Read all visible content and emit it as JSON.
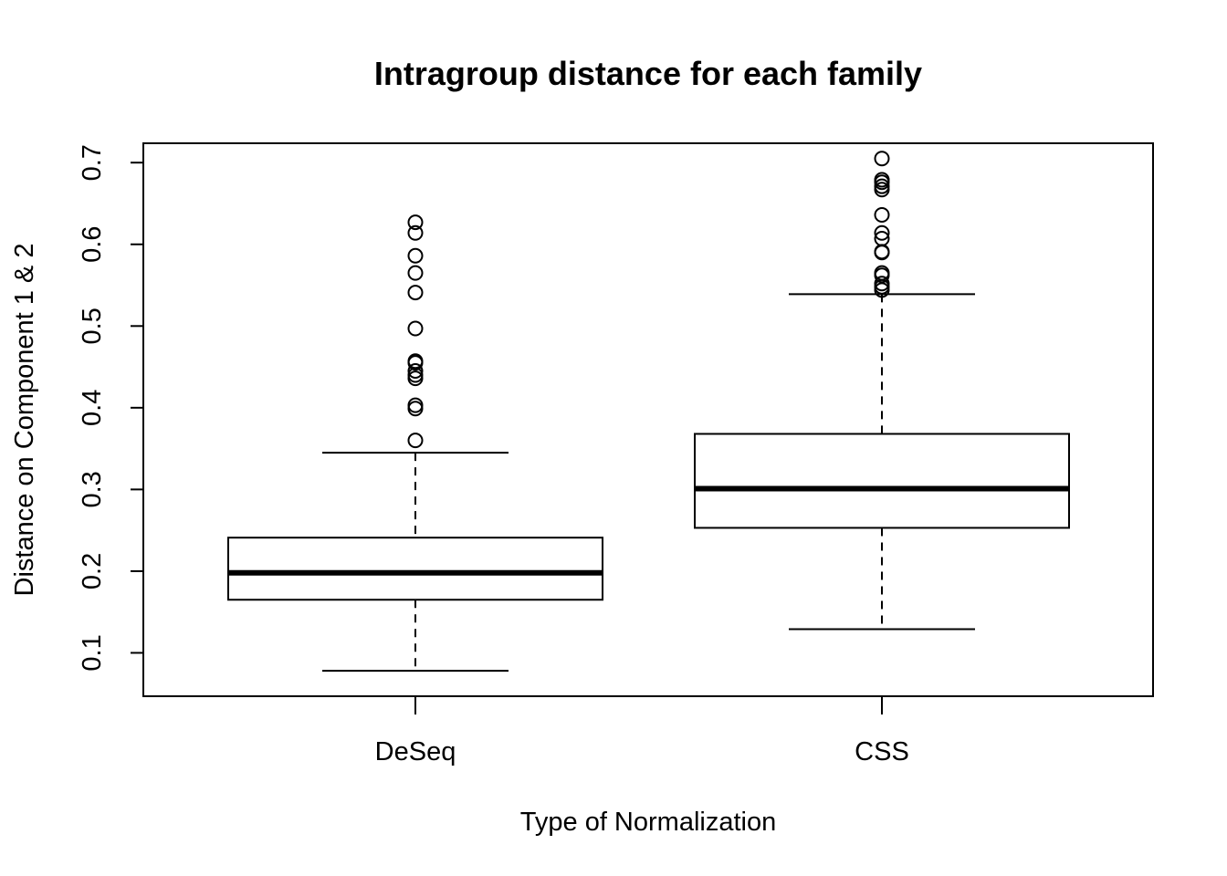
{
  "chart_data": {
    "type": "boxplot",
    "title": "Intragroup distance for each family",
    "xlabel": "Type of Normalization",
    "ylabel": "Distance on Component 1 & 2",
    "ylim": [
      0.0469,
      0.7237
    ],
    "yticks": [
      "0.1",
      "0.2",
      "0.3",
      "0.4",
      "0.5",
      "0.6",
      "0.7"
    ],
    "categories": [
      "DeSeq",
      "CSS"
    ],
    "grid": false,
    "legend": "none",
    "boxes": [
      {
        "name": "DeSeq",
        "whisker_low": 0.078,
        "q1": 0.165,
        "median": 0.198,
        "q3": 0.241,
        "whisker_high": 0.345,
        "outliers": [
          0.36,
          0.399,
          0.403,
          0.436,
          0.44,
          0.445,
          0.455,
          0.457,
          0.497,
          0.541,
          0.565,
          0.586,
          0.614,
          0.627
        ]
      },
      {
        "name": "CSS",
        "whisker_low": 0.129,
        "q1": 0.253,
        "median": 0.301,
        "q3": 0.368,
        "whisker_high": 0.539,
        "outliers": [
          0.544,
          0.548,
          0.552,
          0.562,
          0.565,
          0.59,
          0.591,
          0.607,
          0.614,
          0.636,
          0.667,
          0.671,
          0.676,
          0.679,
          0.705
        ]
      }
    ]
  }
}
